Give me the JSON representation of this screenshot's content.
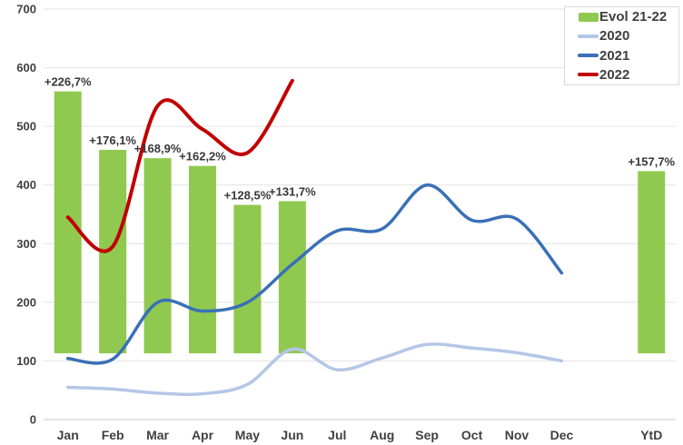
{
  "chart_data": {
    "type": "combo",
    "title": "",
    "grid": true,
    "y_axis": {
      "min": 0,
      "max": 700,
      "step": 100,
      "tick_labels": [
        "0",
        "100",
        "200",
        "300",
        "400",
        "500",
        "600",
        "700"
      ]
    },
    "x_categories": [
      "Jan",
      "Feb",
      "Mar",
      "Apr",
      "May",
      "Jun",
      "Jul",
      "Aug",
      "Sep",
      "Oct",
      "Nov",
      "Dec",
      "",
      "YtD"
    ],
    "bars": {
      "name": "Evol 21-22",
      "color": "#90C94F",
      "categories": [
        "Jan",
        "Feb",
        "Mar",
        "Apr",
        "May",
        "Jun",
        "YtD"
      ],
      "category_indices": [
        0,
        1,
        2,
        3,
        4,
        5,
        13
      ],
      "values_pct": [
        226.7,
        176.1,
        168.9,
        162.2,
        128.5,
        131.7,
        157.7
      ],
      "labels": [
        "+226,7%",
        "+176,1%",
        "+168,9%",
        "+162,2%",
        "+128,5%",
        "+131,7%",
        "+157,7%"
      ],
      "secondary_axis_hint": {
        "pct_zero_primary_value": 113,
        "primary_units_per_pct": 1.97
      }
    },
    "line_series": [
      {
        "name": "2020",
        "color": "#B4C7E7",
        "values": [
          55,
          52,
          45,
          44,
          60,
          120,
          85,
          105,
          128,
          122,
          114,
          100
        ]
      },
      {
        "name": "2021",
        "color": "#3A70B7",
        "values": [
          104,
          103,
          200,
          185,
          200,
          265,
          322,
          325,
          400,
          340,
          342,
          250
        ]
      },
      {
        "name": "2022",
        "color": "#C00000",
        "values": [
          345,
          295,
          535,
          495,
          455,
          578
        ]
      }
    ],
    "legend": {
      "position": "top-right",
      "items": [
        {
          "label": "Evol 21-22",
          "type": "bar",
          "color": "#90C94F"
        },
        {
          "label": "2020",
          "type": "line",
          "color": "#B4C7E7"
        },
        {
          "label": "2021",
          "type": "line",
          "color": "#3A70B7"
        },
        {
          "label": "2022",
          "type": "line",
          "color": "#C00000"
        }
      ]
    }
  }
}
